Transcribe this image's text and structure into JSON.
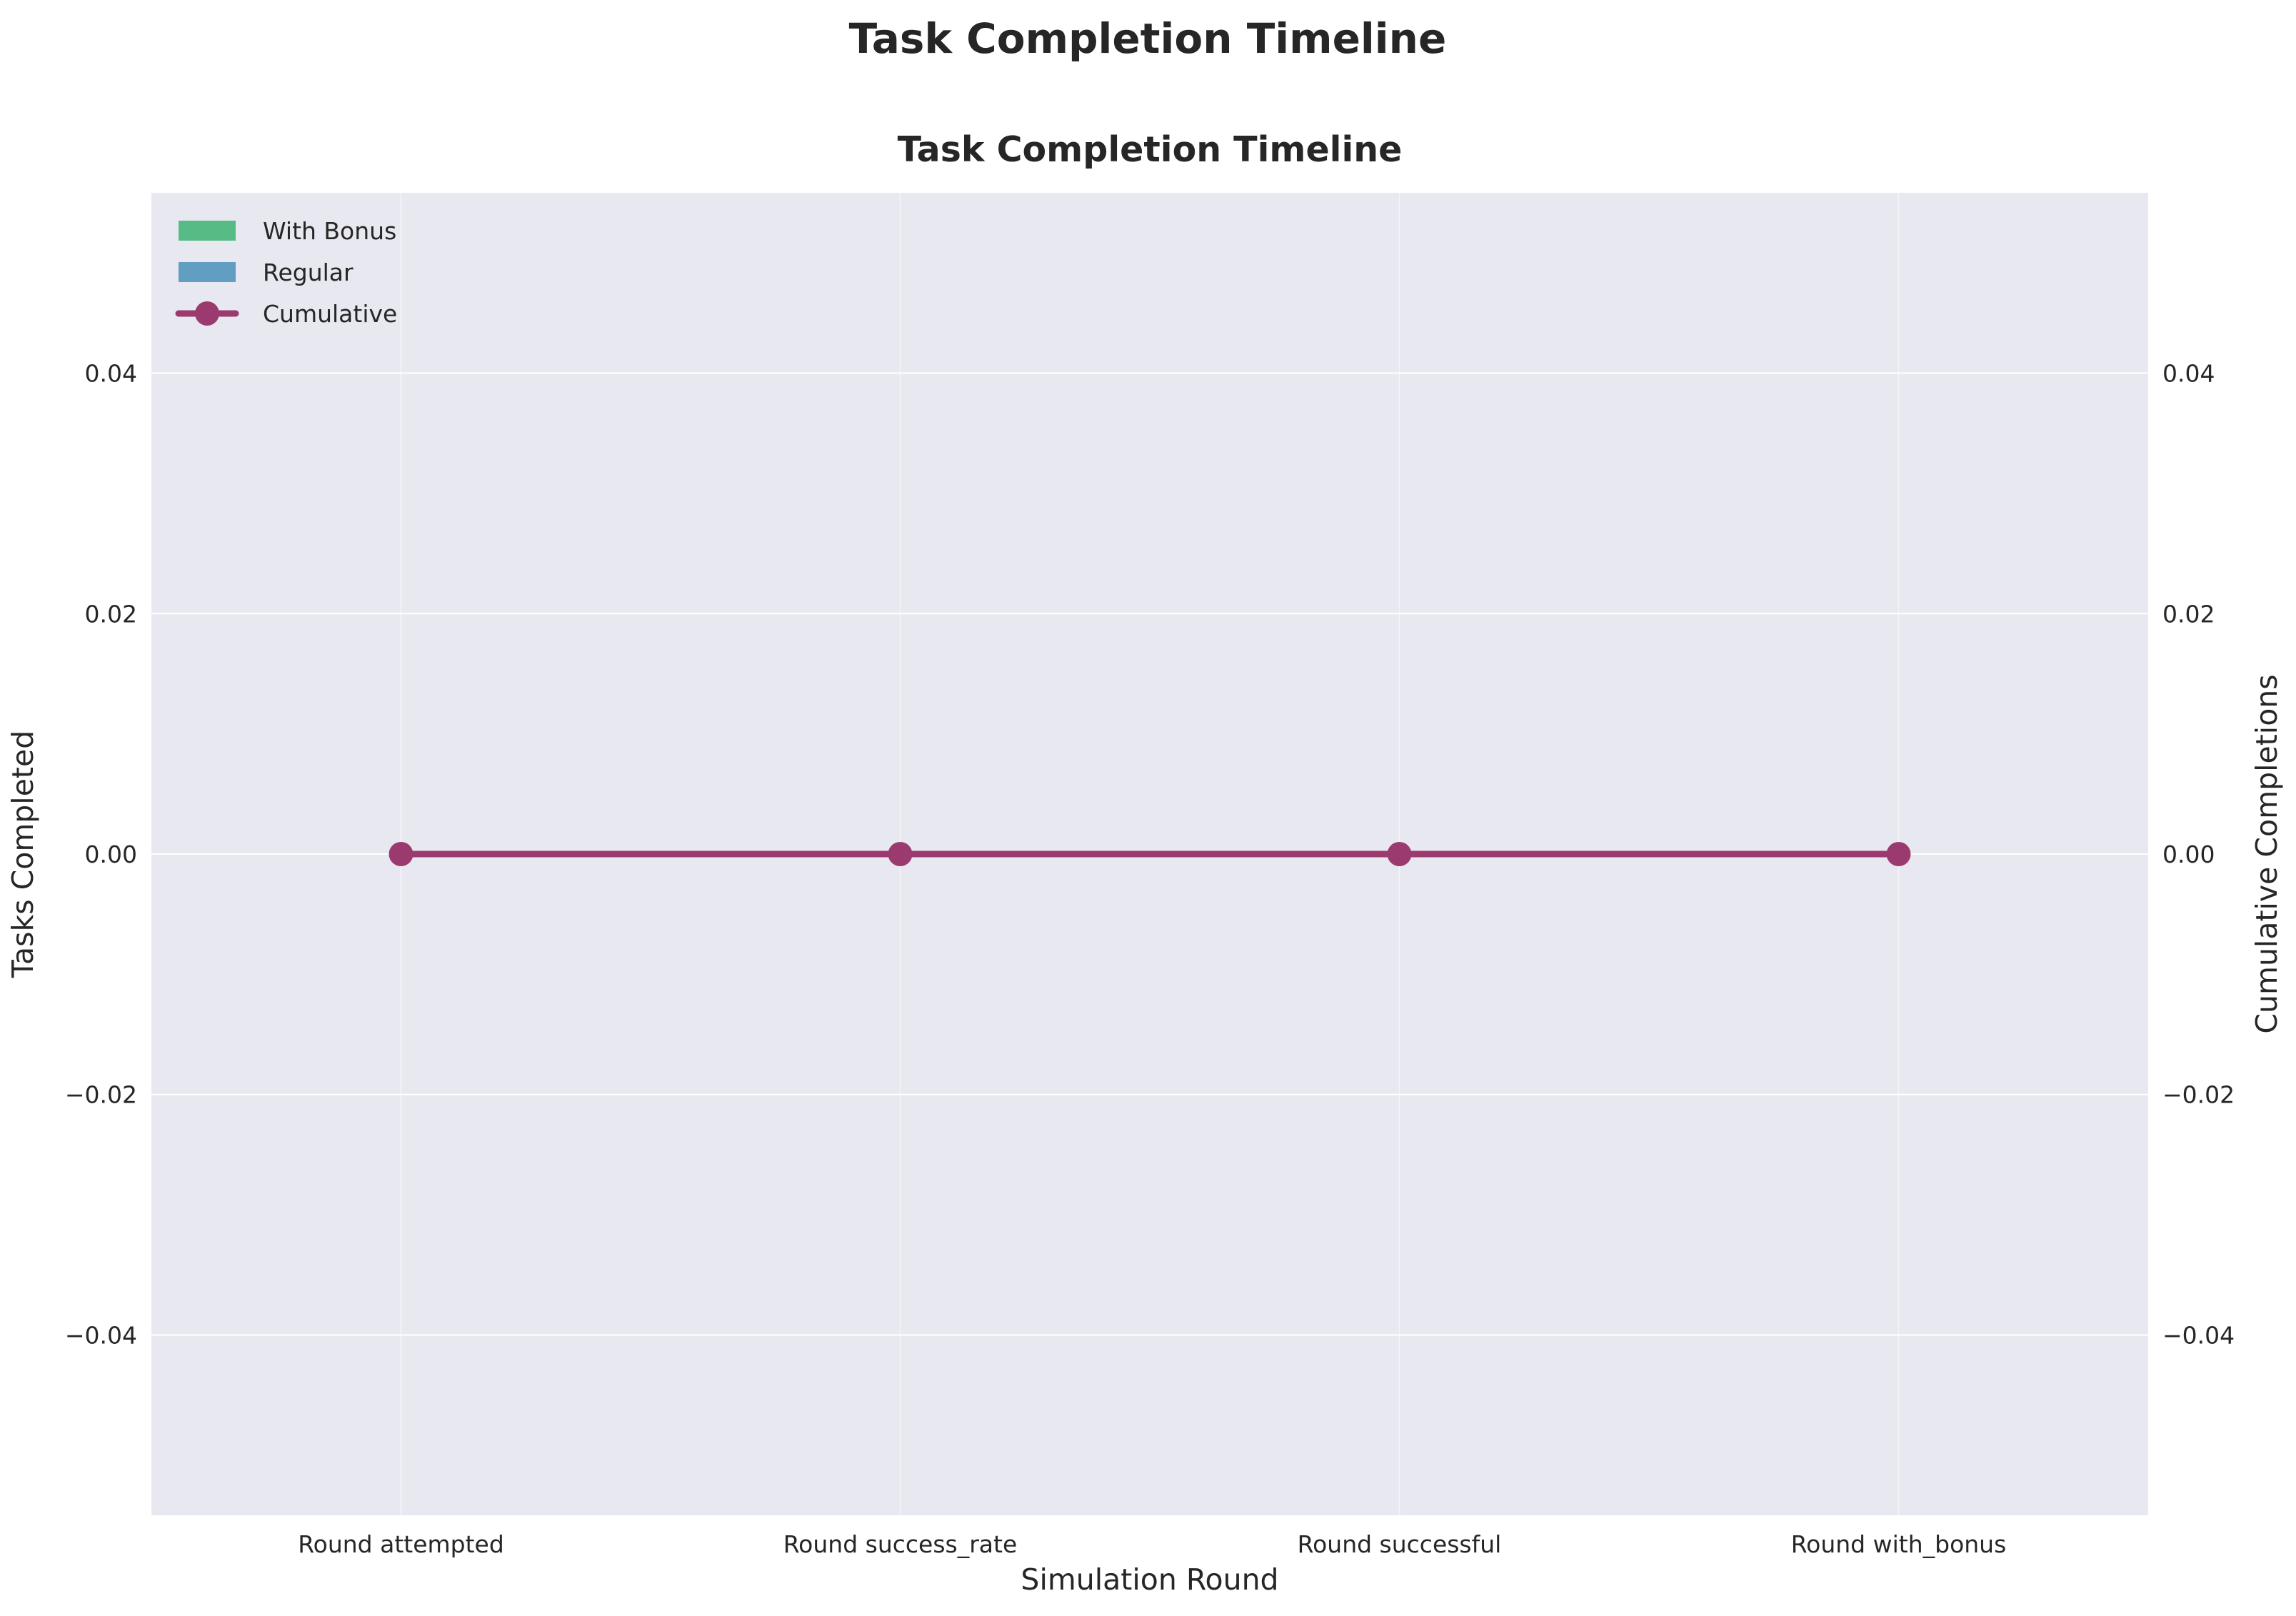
{
  "figure": {
    "suptitle": "Task Completion Timeline"
  },
  "chart_data": {
    "type": "bar",
    "title": "Task Completion Timeline",
    "xlabel": "Simulation Round",
    "ylabel": "Tasks Completed",
    "y2label": "Cumulative Completions",
    "categories": [
      "Round attempted",
      "Round success_rate",
      "Round successful",
      "Round with_bonus"
    ],
    "ylim": [
      -0.055,
      0.055
    ],
    "y2lim": [
      -0.055,
      0.055
    ],
    "yticks": [
      -0.04,
      -0.02,
      0.0,
      0.02,
      0.04
    ],
    "ytick_labels": [
      "−0.04",
      "−0.02",
      "0.00",
      "0.02",
      "0.04"
    ],
    "y2ticks": [
      -0.04,
      -0.02,
      0.0,
      0.02,
      0.04
    ],
    "y2tick_labels": [
      "−0.04",
      "−0.02",
      "0.00",
      "0.02",
      "0.04"
    ],
    "series": [
      {
        "name": "With Bonus",
        "kind": "bar",
        "color": "#3cb371",
        "values": [
          0,
          0,
          0,
          0
        ]
      },
      {
        "name": "Regular",
        "kind": "bar",
        "color": "#4a90b8",
        "values": [
          0,
          0,
          0,
          0
        ]
      },
      {
        "name": "Cumulative",
        "kind": "line",
        "axis": "right",
        "color": "#9b3a6e",
        "marker": "circle",
        "values": [
          0,
          0,
          0,
          0
        ]
      }
    ],
    "grid": true,
    "legend_position": "top-left",
    "background": "#e8e8f0"
  }
}
